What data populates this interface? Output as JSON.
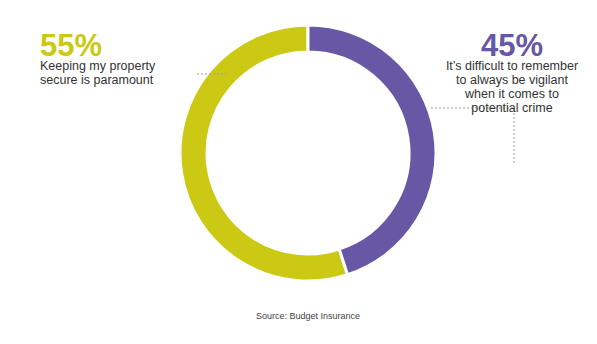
{
  "chart_data": {
    "type": "donut",
    "categories": [
      "Keeping my property secure is paramount",
      "It’s difficult to remember to always be vigilant when it comes to potential crime"
    ],
    "values": [
      55,
      45
    ],
    "value_labels": [
      "55%",
      "45%"
    ],
    "colors": [
      "#cbc914",
      "#6757a5"
    ],
    "data_labels": true,
    "annotations": [
      "Source: Budget Insurance"
    ]
  }
}
